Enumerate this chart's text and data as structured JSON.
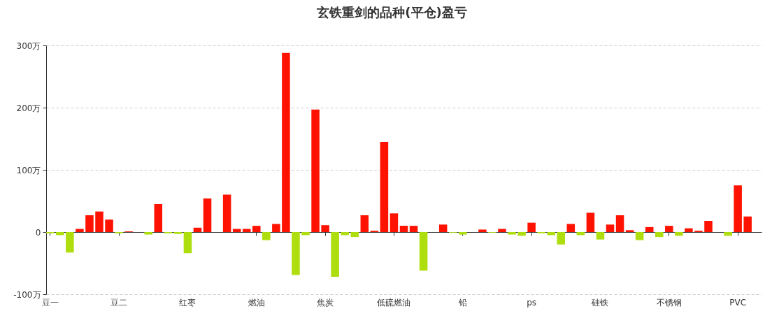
{
  "chart_data": {
    "type": "bar",
    "title": "玄铁重剑的品种(平仓)盈亏",
    "categories": [
      "豆一",
      null,
      null,
      null,
      null,
      null,
      null,
      "豆二",
      null,
      null,
      null,
      null,
      null,
      null,
      "红枣",
      null,
      null,
      null,
      null,
      null,
      null,
      "燃油",
      null,
      null,
      null,
      null,
      null,
      null,
      "焦炭",
      null,
      null,
      null,
      null,
      null,
      null,
      "低硫燃油",
      null,
      null,
      null,
      null,
      null,
      null,
      "铅",
      null,
      null,
      null,
      null,
      null,
      null,
      "ps",
      null,
      null,
      null,
      null,
      null,
      null,
      "硅铁",
      null,
      null,
      null,
      null,
      null,
      null,
      "不锈钢",
      null,
      null,
      null,
      null,
      null,
      null,
      "PVC",
      null,
      null
    ],
    "values": [
      -2,
      -5,
      -33,
      5,
      27,
      33,
      20,
      -2,
      1,
      null,
      -4,
      45,
      -2,
      -3,
      -34,
      7,
      54,
      null,
      60,
      5,
      5,
      10,
      -13,
      13,
      288,
      -69,
      -5,
      197,
      11,
      -72,
      -5,
      -8,
      27,
      2,
      145,
      30,
      10,
      10,
      -62,
      null,
      12,
      -1,
      -4,
      null,
      4,
      -1,
      5,
      -4,
      -6,
      15,
      -2,
      -5,
      -20,
      13,
      -5,
      31,
      -12,
      12,
      27,
      3,
      -13,
      8,
      -8,
      10,
      -6,
      6,
      2,
      18,
      null,
      -6,
      75,
      25,
      null
    ],
    "colors": [
      "#aede0e",
      "#aede0e",
      "#aede0e",
      "#ff1200",
      "#ff1200",
      "#ff1200",
      "#ff1200",
      "#aede0e",
      "#ff1200",
      "#ff1200",
      "#aede0e",
      "#ff1200",
      "#aede0e",
      "#aede0e",
      "#aede0e",
      "#ff1200",
      "#ff1200",
      "#ff1200",
      "#ff1200",
      "#ff1200",
      "#ff1200",
      "#ff1200",
      "#aede0e",
      "#ff1200",
      "#ff1200",
      "#aede0e",
      "#aede0e",
      "#ff1200",
      "#ff1200",
      "#aede0e",
      "#aede0e",
      "#aede0e",
      "#ff1200",
      "#ff1200",
      "#ff1200",
      "#ff1200",
      "#ff1200",
      "#ff1200",
      "#aede0e",
      "#ff1200",
      "#ff1200",
      "#aede0e",
      "#aede0e",
      "#ff1200",
      "#ff1200",
      "#aede0e",
      "#ff1200",
      "#aede0e",
      "#aede0e",
      "#ff1200",
      "#aede0e",
      "#aede0e",
      "#aede0e",
      "#ff1200",
      "#aede0e",
      "#ff1200",
      "#aede0e",
      "#ff1200",
      "#ff1200",
      "#ff1200",
      "#aede0e",
      "#ff1200",
      "#aede0e",
      "#ff1200",
      "#aede0e",
      "#ff1200",
      "#ff1200",
      "#ff1200",
      "#ff1200",
      "#aede0e",
      "#ff1200",
      "#ff1200",
      "#ff1200"
    ],
    "ylim": [
      -100,
      300
    ],
    "yticks": [
      {
        "value": -100,
        "label": "-100万"
      },
      0,
      {
        "value": 100,
        "label": "100万"
      },
      {
        "value": 200,
        "label": "200万"
      },
      {
        "value": 300,
        "label": "300万"
      }
    ],
    "grid": "y"
  }
}
